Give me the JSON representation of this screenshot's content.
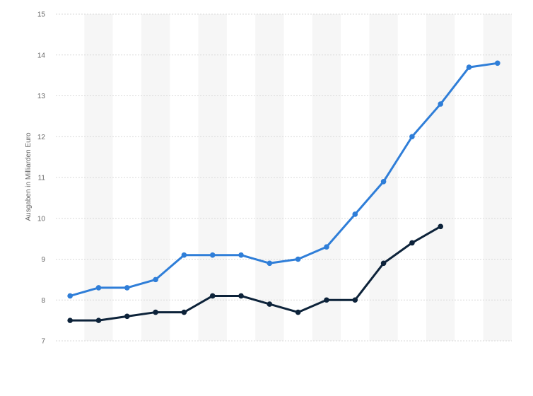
{
  "chart_data": {
    "type": "line",
    "title": "",
    "xlabel": "",
    "ylabel": "Ausgaben in Milliarden Euro",
    "ylim": [
      7,
      15
    ],
    "yticks": [
      7,
      8,
      9,
      10,
      11,
      12,
      13,
      14,
      15
    ],
    "grid": true,
    "legend": "none",
    "x": [
      1,
      2,
      3,
      4,
      5,
      6,
      7,
      8,
      9,
      10,
      11,
      12,
      13,
      14,
      15,
      16
    ],
    "series": [
      {
        "color": "#2f7ed8",
        "values": [
          8.1,
          8.3,
          8.3,
          8.5,
          9.1,
          9.1,
          9.1,
          8.9,
          9.0,
          9.3,
          10.1,
          10.9,
          12.0,
          12.8,
          13.7,
          13.8
        ]
      },
      {
        "color": "#0d233a",
        "values": [
          7.5,
          7.5,
          7.6,
          7.7,
          7.7,
          8.1,
          8.1,
          7.9,
          7.7,
          8.0,
          8.0,
          8.9,
          9.4,
          9.8,
          null,
          null
        ]
      }
    ]
  },
  "colors": {
    "band": "#f6f6f6",
    "grid": "#d9d9d9",
    "text": "#666666"
  }
}
